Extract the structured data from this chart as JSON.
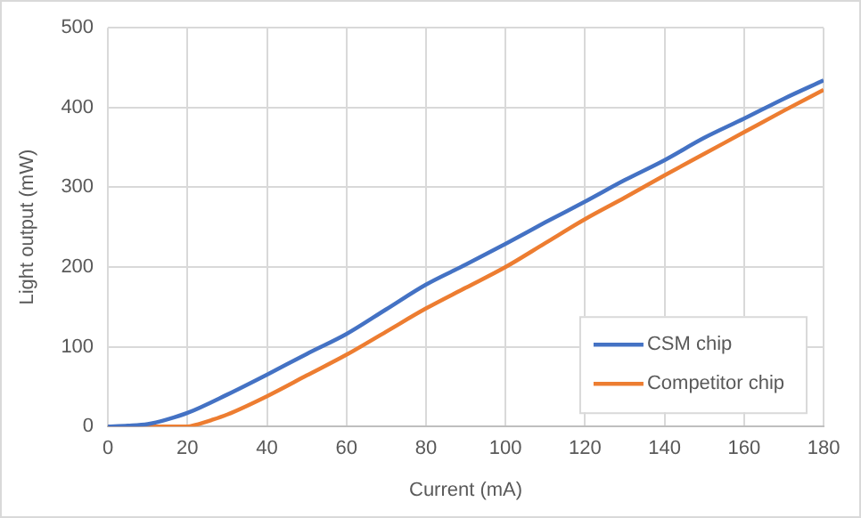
{
  "chart_data": {
    "type": "line",
    "xlabel": "Current (mA)",
    "ylabel": "Light output (mW)",
    "xlim": [
      0,
      180
    ],
    "xticks": [
      0,
      20,
      40,
      60,
      80,
      100,
      120,
      140,
      160,
      180
    ],
    "ylim": [
      0,
      500
    ],
    "yticks": [
      0,
      100,
      200,
      300,
      400,
      500
    ],
    "grid": true,
    "legend": "bottom right",
    "marker": "none",
    "line_style": "solid",
    "series": [
      {
        "name": "CSM chip",
        "color": "#4472c4",
        "x": [
          0,
          5,
          10,
          15,
          20,
          30,
          40,
          50,
          60,
          70,
          80,
          90,
          100,
          110,
          120,
          130,
          140,
          150,
          160,
          170,
          180
        ],
        "values": [
          0,
          1,
          3,
          9,
          17,
          40,
          65,
          91,
          116,
          147,
          178,
          203,
          229,
          256,
          282,
          309,
          334,
          362,
          386,
          411,
          434
        ]
      },
      {
        "name": "Competitor chip",
        "color": "#ed7d31",
        "x": [
          0,
          10,
          18,
          20,
          22,
          26,
          30,
          40,
          50,
          60,
          70,
          80,
          90,
          100,
          110,
          120,
          130,
          140,
          150,
          160,
          170,
          180
        ],
        "values": [
          0,
          0,
          0,
          0,
          2,
          8,
          15,
          38,
          64,
          90,
          119,
          148,
          174,
          200,
          230,
          260,
          287,
          315,
          342,
          369,
          396,
          422
        ]
      }
    ]
  }
}
